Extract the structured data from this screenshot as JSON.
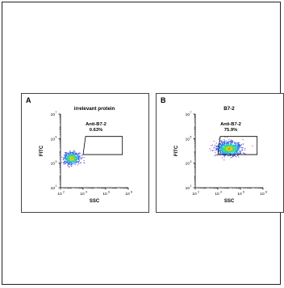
{
  "figure": {
    "panels": [
      {
        "letter": "A",
        "title": "irrelevant protein"
      },
      {
        "letter": "B",
        "title": "B7-2"
      }
    ]
  },
  "chart_data": [
    {
      "type": "scatter",
      "panel": "A",
      "title": "irrelevant protein",
      "xlabel": "SSC",
      "ylabel": "FITC",
      "x_scale": "log",
      "y_scale": "log",
      "xlim": [
        100,
        100000000
      ],
      "ylim": [
        10,
        10000000
      ],
      "x_ticks": [
        {
          "exp": 2,
          "label": "10"
        },
        {
          "exp": 4,
          "label": "10"
        },
        {
          "exp": 6,
          "label": "10"
        },
        {
          "exp": 8,
          "label": "10"
        }
      ],
      "y_ticks": [
        {
          "exp": 1,
          "label": "10"
        },
        {
          "exp": 3,
          "label": "10"
        },
        {
          "exp": 5,
          "label": "10"
        },
        {
          "exp": 7,
          "label": "10"
        }
      ],
      "gate": {
        "name": "Anti-B7-2",
        "percent": "0.63%",
        "x_range": [
          10000,
          30000000
        ],
        "y_range": [
          5000,
          150000
        ]
      },
      "population": {
        "x_center": 1000,
        "y_center": 2500,
        "x_spread_log": 0.35,
        "y_spread_log": 0.25,
        "n_points": 520,
        "seed": 7
      }
    },
    {
      "type": "scatter",
      "panel": "B",
      "title": "B7-2",
      "xlabel": "SSC",
      "ylabel": "FITC",
      "x_scale": "log",
      "y_scale": "log",
      "xlim": [
        100,
        100000000
      ],
      "ylim": [
        10,
        10000000
      ],
      "x_ticks": [
        {
          "exp": 2,
          "label": "10"
        },
        {
          "exp": 4,
          "label": "10"
        },
        {
          "exp": 6,
          "label": "10"
        },
        {
          "exp": 8,
          "label": "10"
        }
      ],
      "y_ticks": [
        {
          "exp": 1,
          "label": "10"
        },
        {
          "exp": 3,
          "label": "10"
        },
        {
          "exp": 5,
          "label": "10"
        },
        {
          "exp": 7,
          "label": "10"
        }
      ],
      "gate": {
        "name": "Anti-B7-2",
        "percent": "75.9%",
        "x_range": [
          10000,
          30000000
        ],
        "y_range": [
          5000,
          150000
        ]
      },
      "population": {
        "x_center": 100000,
        "y_center": 15000,
        "x_spread_log": 0.55,
        "y_spread_log": 0.28,
        "n_points": 900,
        "seed": 13
      }
    }
  ]
}
